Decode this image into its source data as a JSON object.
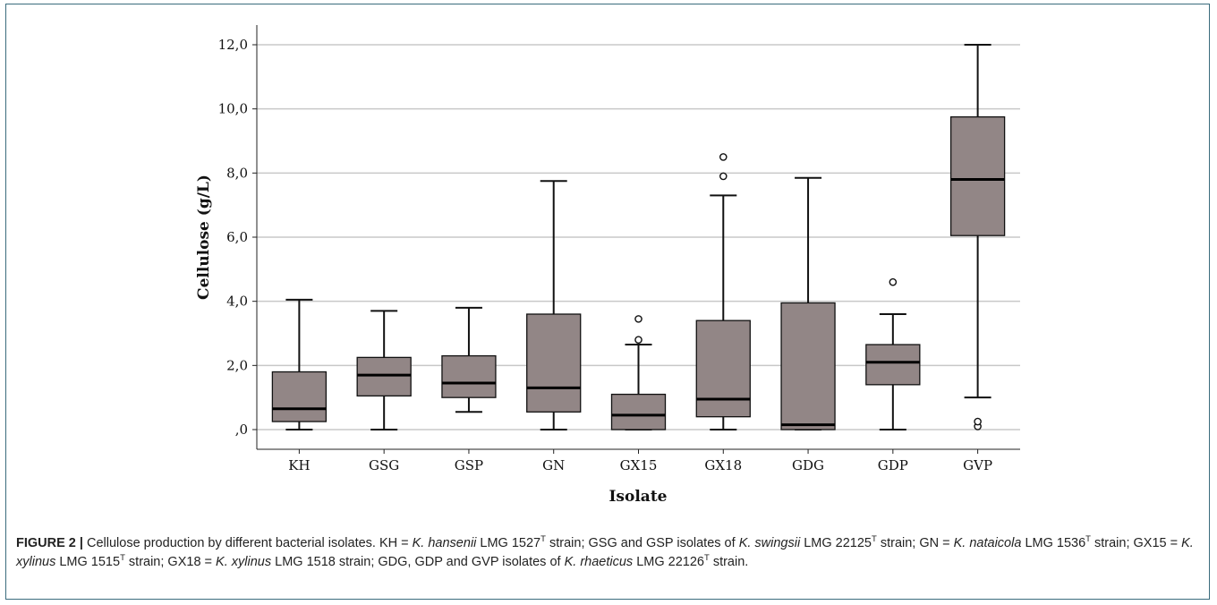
{
  "chart_data": {
    "type": "boxplot",
    "xlabel": "Isolate",
    "ylabel": "Cellulose (g/L)",
    "ylim": [
      -0.8,
      12.6
    ],
    "yticks": [
      0,
      2,
      4,
      6,
      8,
      10,
      12
    ],
    "ytick_labels": [
      ",0",
      "2,0",
      "4,0",
      "6,0",
      "8,0",
      "10,0",
      "12,0"
    ],
    "grid": "horizontal",
    "box_color": "#928686",
    "categories": [
      "KH",
      "GSG",
      "GSP",
      "GN",
      "GX15",
      "GX18",
      "GDG",
      "GDP",
      "GVP"
    ],
    "boxes": [
      {
        "name": "KH",
        "min": 0,
        "q1": 0.25,
        "median": 0.65,
        "q3": 1.8,
        "max": 4.05,
        "outliers": []
      },
      {
        "name": "GSG",
        "min": 0,
        "q1": 1.05,
        "median": 1.7,
        "q3": 2.25,
        "max": 3.7,
        "outliers": []
      },
      {
        "name": "GSP",
        "min": 0.55,
        "q1": 1.0,
        "median": 1.45,
        "q3": 2.3,
        "max": 3.8,
        "outliers": []
      },
      {
        "name": "GN",
        "min": 0,
        "q1": 0.55,
        "median": 1.3,
        "q3": 3.6,
        "max": 7.75,
        "outliers": []
      },
      {
        "name": "GX15",
        "min": 0,
        "q1": 0.0,
        "median": 0.45,
        "q3": 1.1,
        "max": 2.65,
        "outliers": [
          2.8,
          3.45
        ]
      },
      {
        "name": "GX18",
        "min": 0,
        "q1": 0.4,
        "median": 0.95,
        "q3": 3.4,
        "max": 7.3,
        "outliers": [
          7.9,
          8.5
        ]
      },
      {
        "name": "GDG",
        "min": 0,
        "q1": 0.0,
        "median": 0.15,
        "q3": 3.95,
        "max": 7.85,
        "outliers": []
      },
      {
        "name": "GDP",
        "min": 0,
        "q1": 1.4,
        "median": 2.1,
        "q3": 2.65,
        "max": 3.6,
        "outliers": [
          4.6
        ]
      },
      {
        "name": "GVP",
        "min": 1.0,
        "q1": 6.05,
        "median": 7.8,
        "q3": 9.75,
        "max": 12.0,
        "outliers": [
          0.1,
          0.25
        ]
      }
    ]
  },
  "caption": {
    "label": "FIGURE 2 |",
    "segments": [
      {
        "t": " Cellulose production by different bacterial isolates. KH = "
      },
      {
        "t": "K. hansenii",
        "i": true
      },
      {
        "t": " LMG 1527"
      },
      {
        "t": "T",
        "sup": true
      },
      {
        "t": " strain; GSG and GSP isolates of "
      },
      {
        "t": "K. swingsii",
        "i": true
      },
      {
        "t": " LMG 22125"
      },
      {
        "t": "T",
        "sup": true
      },
      {
        "t": " strain; GN = "
      },
      {
        "t": "K. nataicola",
        "i": true
      },
      {
        "t": " LMG 1536"
      },
      {
        "t": "T",
        "sup": true
      },
      {
        "t": " strain; GX15 = "
      },
      {
        "t": "K. xylinus",
        "i": true
      },
      {
        "t": " LMG 1515"
      },
      {
        "t": "T",
        "sup": true
      },
      {
        "t": " strain; GX18 = "
      },
      {
        "t": "K. xylinus",
        "i": true
      },
      {
        "t": " LMG 1518 strain; GDG, GDP and GVP isolates of "
      },
      {
        "t": "K. rhaeticus",
        "i": true
      },
      {
        "t": " LMG 22126"
      },
      {
        "t": "T",
        "sup": true
      },
      {
        "t": " strain."
      }
    ]
  }
}
